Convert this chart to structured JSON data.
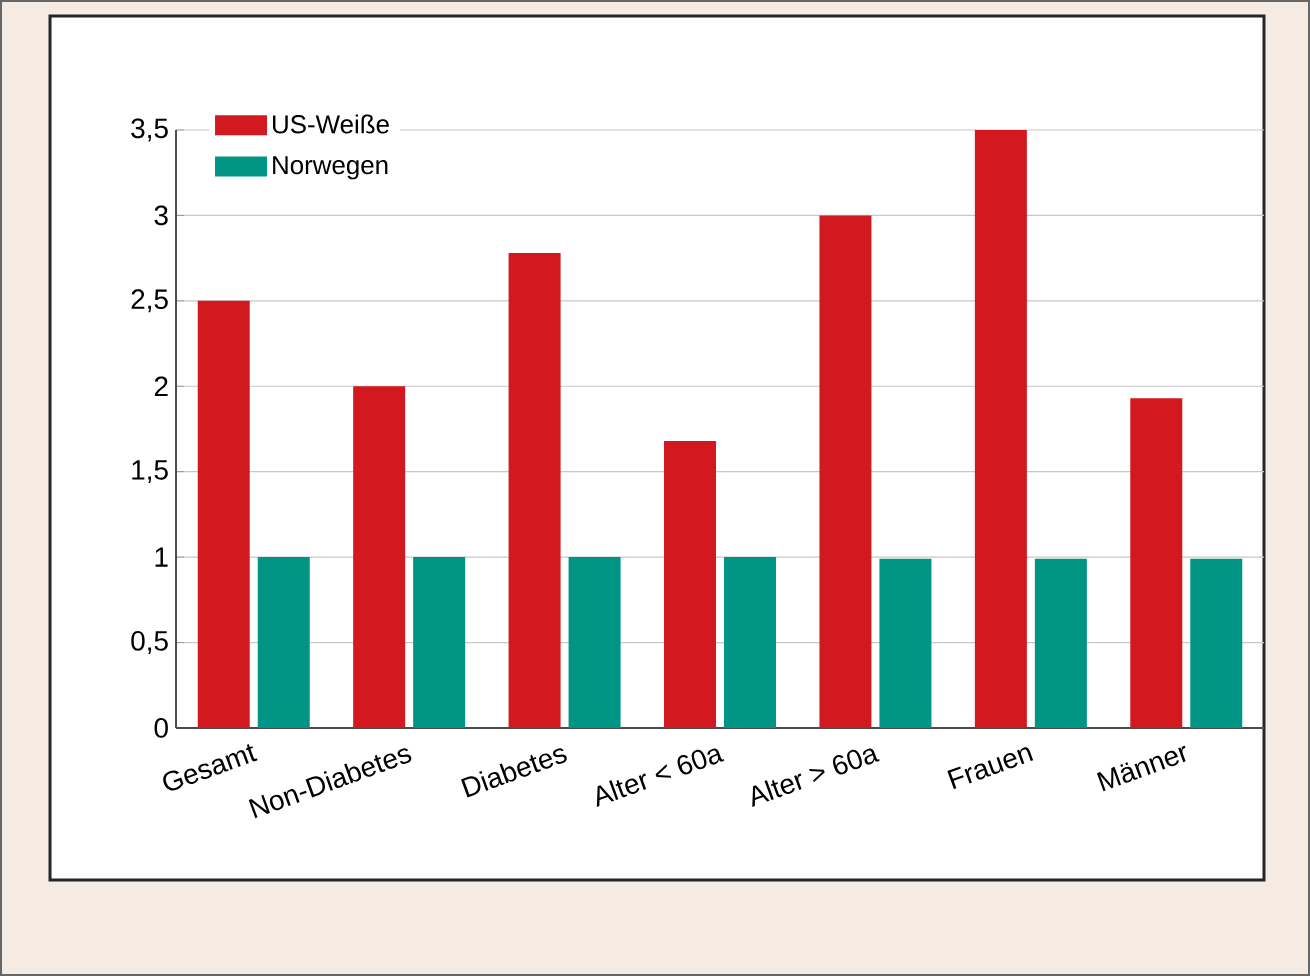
{
  "chart_data": {
    "type": "bar",
    "categories": [
      "Gesamt",
      "Non-Diabetes",
      "Diabetes",
      "Alter < 60a",
      "Alter > 60a",
      "Frauen",
      "Männer"
    ],
    "series": [
      {
        "name": "US-Weiße",
        "color": "#d2191f",
        "values": [
          2.5,
          2.0,
          2.78,
          1.68,
          3.0,
          3.5,
          1.93
        ]
      },
      {
        "name": "Norwegen",
        "color": "#009484",
        "values": [
          1.0,
          1.0,
          1.0,
          1.0,
          0.99,
          0.99,
          0.99
        ]
      }
    ],
    "ylim": [
      0,
      3.5
    ],
    "yticks": [
      0,
      {
        "value": 0.5,
        "label": "0,5"
      },
      1,
      {
        "value": 1.5,
        "label": "1,5"
      },
      2,
      {
        "value": 2.5,
        "label": "2,5"
      },
      3,
      {
        "value": 3.5,
        "label": "3,5"
      }
    ],
    "grid": "y",
    "legend": "top left"
  }
}
